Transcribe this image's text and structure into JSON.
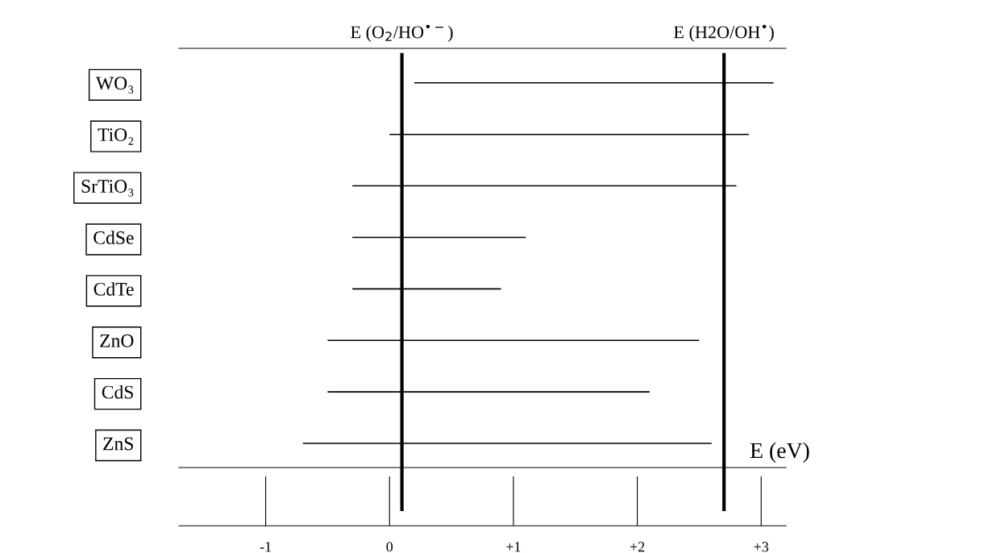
{
  "chart_data": {
    "type": "bar",
    "orientation": "horizontal",
    "categories": [
      "WO₃",
      "TiO₂",
      "SrTiO₃",
      "CdSe",
      "CdTe",
      "ZnO",
      "CdS",
      "ZnS"
    ],
    "base": [
      0.2,
      0,
      -0.3,
      -0.3,
      -0.3,
      -0.5,
      -0.5,
      -0.7
    ],
    "values": [
      2.9,
      2.9,
      3.1,
      1.4,
      1.2,
      3.0,
      2.6,
      3.3
    ],
    "color": "#000000",
    "xlabel": "E (eV)",
    "xlim": [
      -1.7,
      3.2
    ],
    "xticks": [
      {
        "value": -1,
        "label": "-1"
      },
      0,
      {
        "value": 1,
        "label": "+1"
      },
      {
        "value": 2,
        "label": "+2"
      },
      {
        "value": 3,
        "label": "+3"
      }
    ],
    "ref_lines": [
      {
        "axis": "x",
        "value": 0.1,
        "label": "E (O$_{2}$/HO$^{•−}$)",
        "color": "#000000"
      },
      {
        "axis": "x",
        "value": 2.7,
        "label": "E (H2O/OH$^{•}$)",
        "color": "#000000"
      }
    ],
    "grid": false,
    "legend": false
  }
}
